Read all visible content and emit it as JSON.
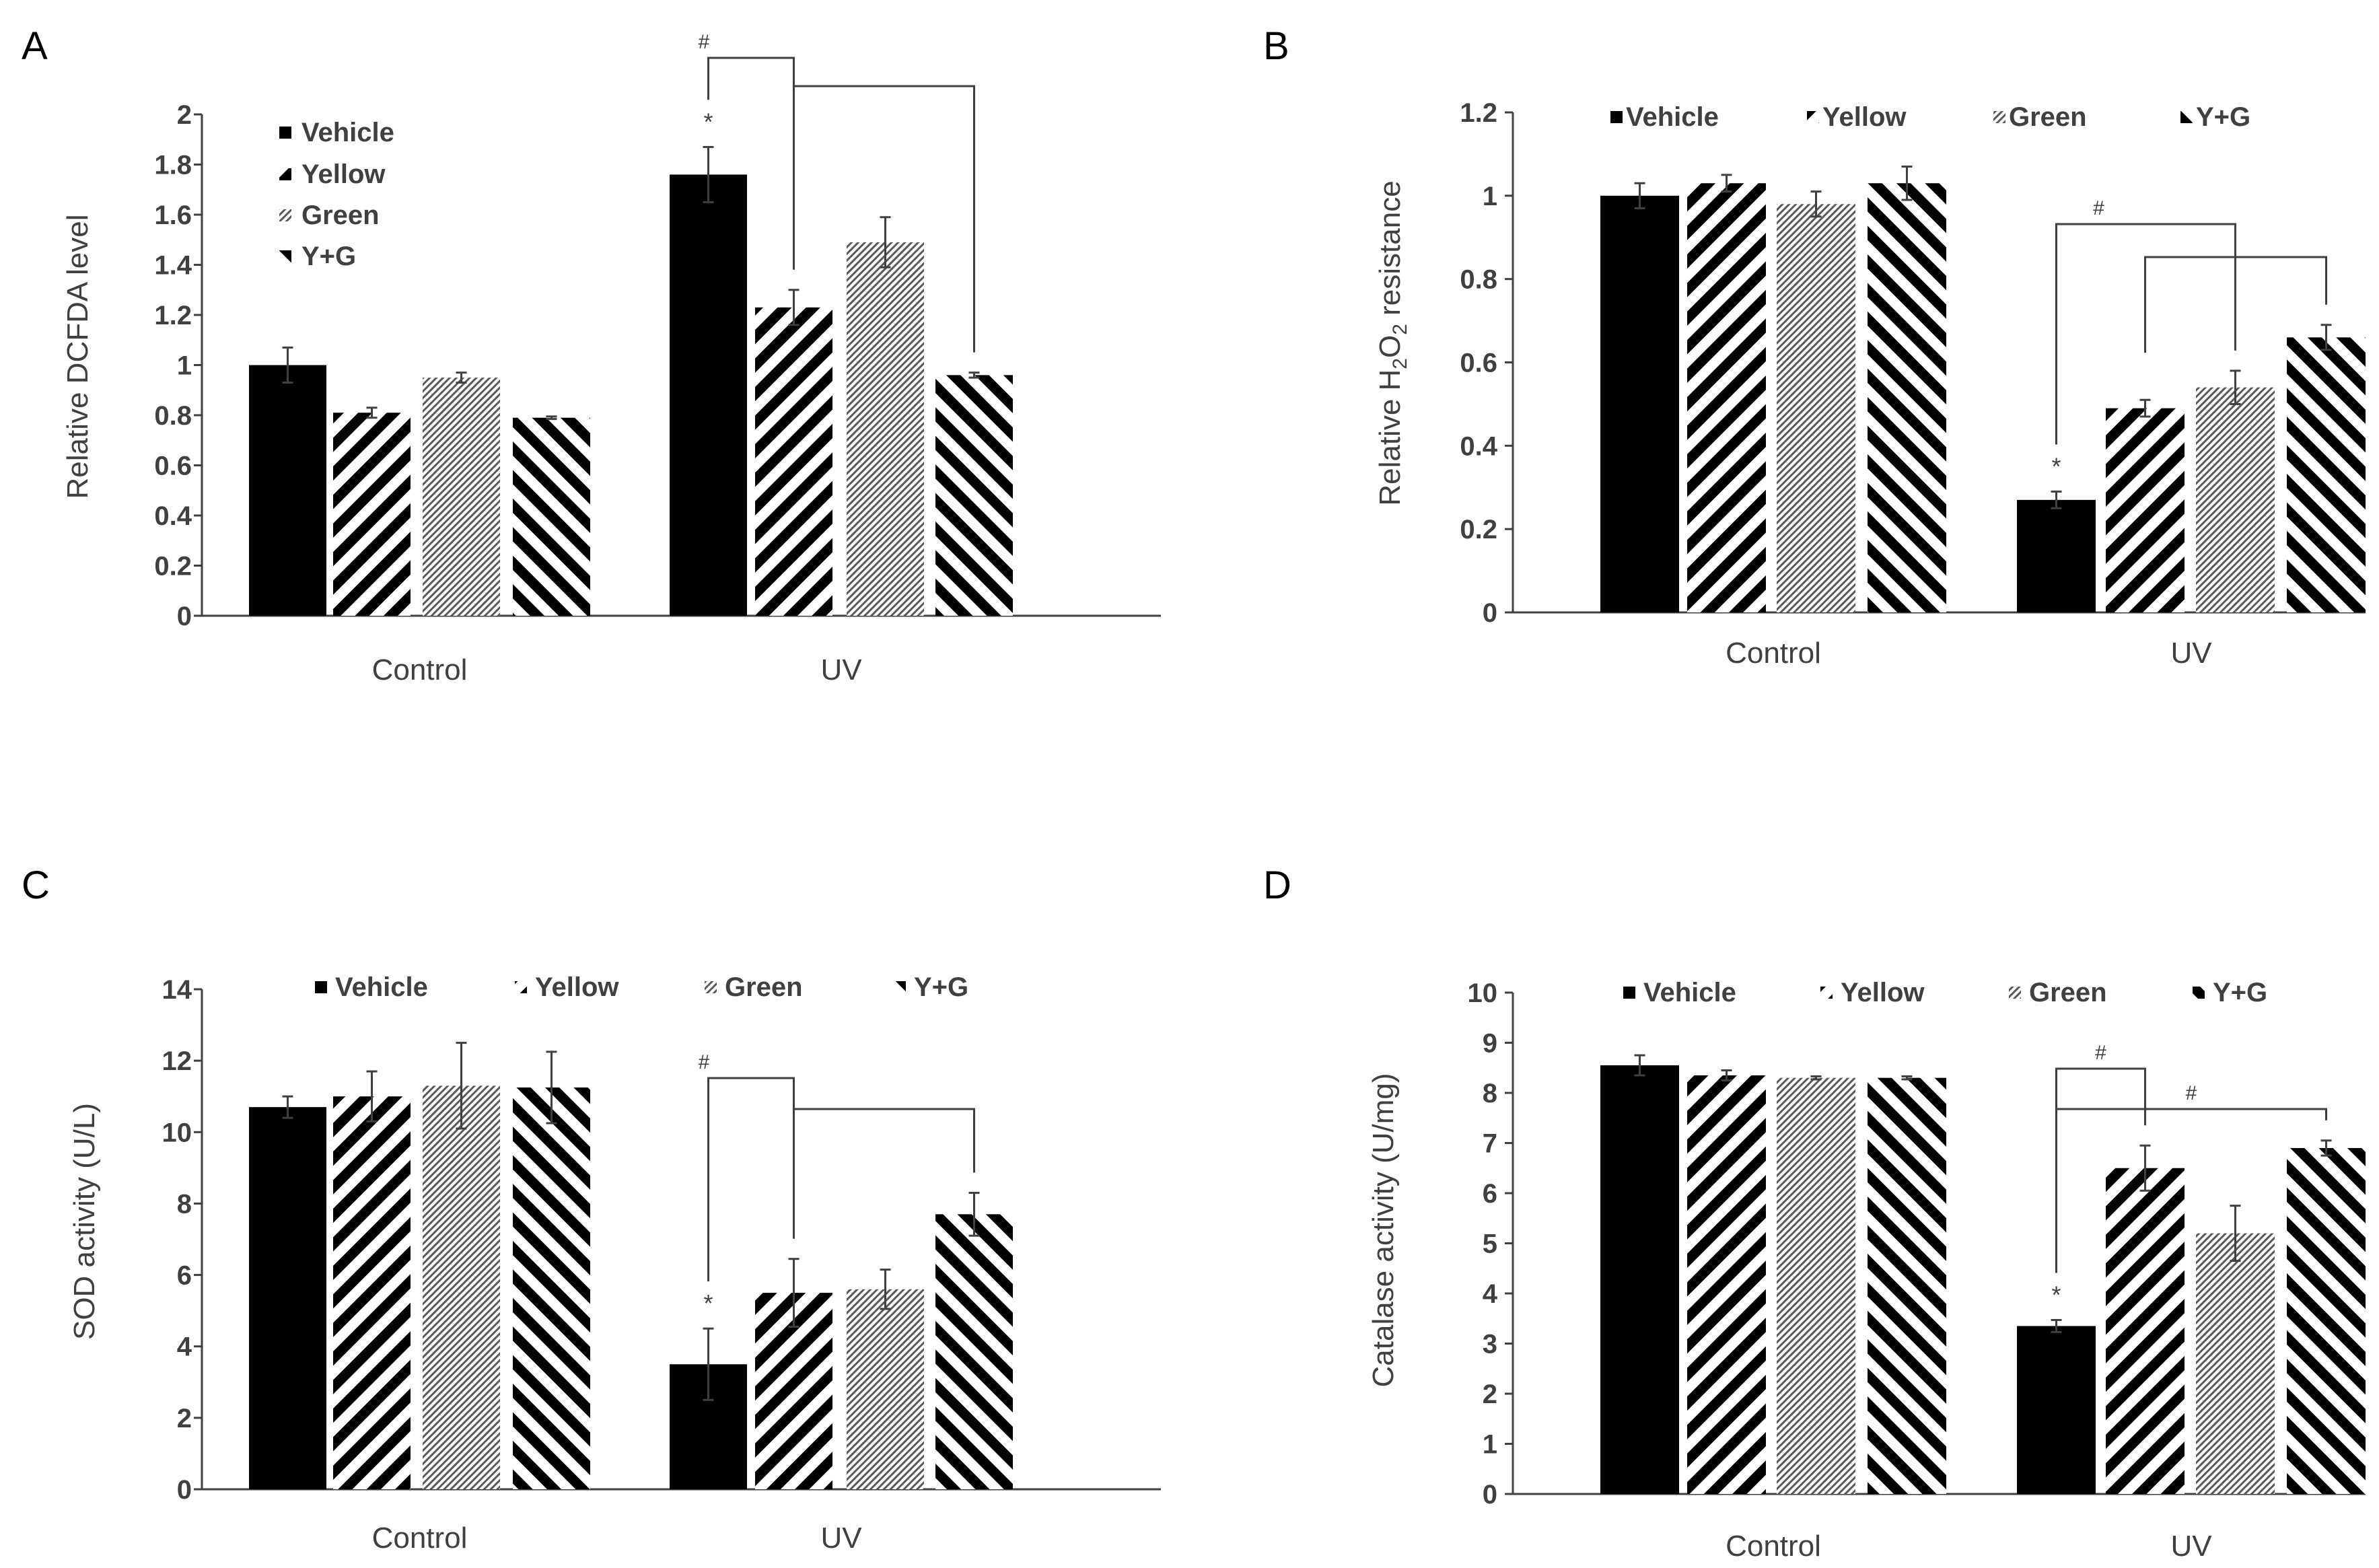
{
  "chart_data": [
    {
      "panel": "A",
      "type": "bar",
      "ylabel": "Relative DCFDA level",
      "ylim": [
        0,
        2
      ],
      "yticks": [
        0,
        0.2,
        0.4,
        0.6,
        0.8,
        1,
        1.2,
        1.4,
        1.6,
        1.8,
        2
      ],
      "categories": [
        "Control",
        "UV"
      ],
      "legend_layout": "vertical, top-left",
      "series": [
        {
          "name": "Vehicle",
          "pattern": "solid",
          "values": [
            1.0,
            1.76
          ],
          "errors": [
            0.07,
            0.11
          ]
        },
        {
          "name": "Yellow",
          "pattern": "diag-right",
          "values": [
            0.81,
            1.23
          ],
          "errors": [
            0.02,
            0.07
          ]
        },
        {
          "name": "Green",
          "pattern": "fine",
          "values": [
            0.95,
            1.49
          ],
          "errors": [
            0.02,
            0.1
          ]
        },
        {
          "name": "Y+G",
          "pattern": "diag-left",
          "values": [
            0.79,
            0.96
          ],
          "errors": [
            0.005,
            0.01
          ]
        }
      ],
      "annotations": [
        {
          "text": "*",
          "group": 1,
          "series": 0
        },
        {
          "text": "#",
          "type": "bracket",
          "group": 1,
          "from_series": 0,
          "to_series": 1
        },
        {
          "text": "",
          "type": "bracket",
          "group": 1,
          "from_series": 1,
          "to_series": 3
        }
      ]
    },
    {
      "panel": "B",
      "type": "bar",
      "ylabel": "Relative H2O2 resistance",
      "ylabel_parts": [
        "Relative H",
        "2",
        "O",
        "2",
        " resistance"
      ],
      "ylim": [
        0,
        1.2
      ],
      "yticks": [
        0,
        0.2,
        0.4,
        0.6,
        0.8,
        1,
        1.2
      ],
      "categories": [
        "Control",
        "UV"
      ],
      "legend_layout": "horizontal, top",
      "series": [
        {
          "name": "Vehicle",
          "pattern": "solid",
          "values": [
            1.0,
            0.27
          ],
          "errors": [
            0.03,
            0.02
          ]
        },
        {
          "name": "Yellow",
          "pattern": "diag-right",
          "values": [
            1.03,
            0.49
          ],
          "errors": [
            0.02,
            0.02
          ]
        },
        {
          "name": "Green",
          "pattern": "fine",
          "values": [
            0.98,
            0.54
          ],
          "errors": [
            0.03,
            0.04
          ]
        },
        {
          "name": "Y+G",
          "pattern": "diag-left",
          "values": [
            1.03,
            0.66
          ],
          "errors": [
            0.04,
            0.03
          ]
        }
      ],
      "annotations": [
        {
          "text": "*",
          "group": 1,
          "series": 0
        },
        {
          "text": "#",
          "type": "bracket",
          "group": 1,
          "from_series": 0,
          "to_series": 2
        },
        {
          "text": "",
          "type": "bracket",
          "group": 1,
          "from_series": 1,
          "to_series": 3
        }
      ]
    },
    {
      "panel": "C",
      "type": "bar",
      "ylabel": "SOD activity (U/L)",
      "ylim": [
        0,
        14
      ],
      "yticks": [
        0,
        2,
        4,
        6,
        8,
        10,
        12,
        14
      ],
      "categories": [
        "Control",
        "UV"
      ],
      "legend_layout": "horizontal, top",
      "series": [
        {
          "name": "Vehicle",
          "pattern": "solid",
          "values": [
            10.7,
            3.5
          ],
          "errors": [
            0.3,
            1.0
          ]
        },
        {
          "name": "Yellow",
          "pattern": "diag-right",
          "values": [
            11.0,
            5.5
          ],
          "errors": [
            0.7,
            0.95
          ]
        },
        {
          "name": "Green",
          "pattern": "fine",
          "values": [
            11.3,
            5.6
          ],
          "errors": [
            1.2,
            0.55
          ]
        },
        {
          "name": "Y+G",
          "pattern": "diag-left",
          "values": [
            11.25,
            7.7
          ],
          "errors": [
            1.0,
            0.6
          ]
        }
      ],
      "annotations": [
        {
          "text": "*",
          "group": 1,
          "series": 0
        },
        {
          "text": "#",
          "type": "bracket",
          "group": 1,
          "from_series": 0,
          "to_series": 1
        },
        {
          "text": "",
          "type": "bracket",
          "group": 1,
          "from_series": 1,
          "to_series": 3
        }
      ]
    },
    {
      "panel": "D",
      "type": "bar",
      "ylabel": "Catalase activity (U/mg)",
      "ylim": [
        0,
        10
      ],
      "yticks": [
        0,
        1,
        2,
        3,
        4,
        5,
        6,
        7,
        8,
        9,
        10
      ],
      "categories": [
        "Control",
        "UV"
      ],
      "legend_layout": "horizontal, top",
      "series": [
        {
          "name": "Vehicle",
          "pattern": "solid",
          "values": [
            8.55,
            3.35
          ],
          "errors": [
            0.2,
            0.12
          ]
        },
        {
          "name": "Yellow",
          "pattern": "diag-right",
          "values": [
            8.35,
            6.5
          ],
          "errors": [
            0.1,
            0.45
          ]
        },
        {
          "name": "Green",
          "pattern": "fine",
          "values": [
            8.3,
            5.2
          ],
          "errors": [
            0.03,
            0.55
          ]
        },
        {
          "name": "Y+G",
          "pattern": "diag-left",
          "values": [
            8.3,
            6.9
          ],
          "errors": [
            0.03,
            0.15
          ]
        }
      ],
      "annotations": [
        {
          "text": "*",
          "group": 1,
          "series": 0
        },
        {
          "text": "#",
          "type": "bracket-down",
          "group": 1,
          "from_series": 0,
          "to_series": 1
        },
        {
          "text": "#",
          "type": "bracket-down",
          "group": 1,
          "from_series": 0,
          "to_series": 3
        }
      ]
    }
  ]
}
